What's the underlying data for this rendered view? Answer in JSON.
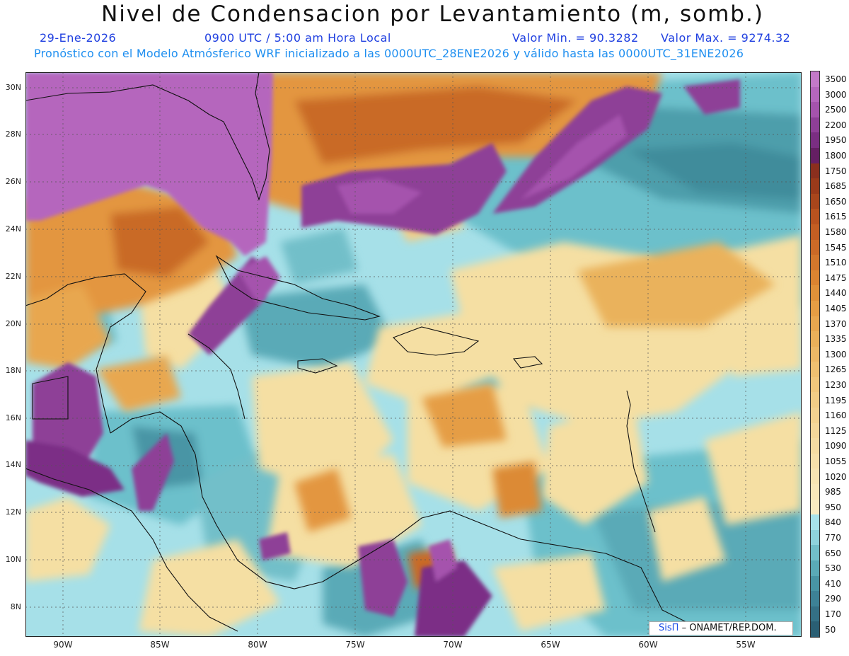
{
  "header": {
    "title": "Nivel de Condensacion por Levantamiento (m, somb.)",
    "date": "29-Ene-2026",
    "time": "0900 UTC / 5:00 am Hora Local",
    "valmin": "Valor Min. = 90.3282",
    "valmax": "Valor Max. = 9274.32",
    "model_line": "Pronóstico con el Modelo Atmósferico WRF inicializado a las 0000UTC_28ENE2026 y válido hasta las  0000UTC_31ENE2026"
  },
  "axes": {
    "lat_labels": [
      "30N",
      "28N",
      "26N",
      "24N",
      "22N",
      "20N",
      "18N",
      "16N",
      "14N",
      "12N",
      "10N",
      "8N"
    ],
    "lon_labels": [
      "90W",
      "85W",
      "80W",
      "75W",
      "70W",
      "65W",
      "60W",
      "55W"
    ]
  },
  "colorbar": {
    "labels": [
      "3500",
      "3000",
      "2500",
      "2200",
      "1950",
      "1800",
      "1750",
      "1685",
      "1650",
      "1615",
      "1580",
      "1545",
      "1510",
      "1475",
      "1440",
      "1405",
      "1370",
      "1335",
      "1300",
      "1265",
      "1230",
      "1195",
      "1160",
      "1125",
      "1090",
      "1055",
      "1020",
      "985",
      "950",
      "840",
      "770",
      "650",
      "530",
      "410",
      "290",
      "170",
      "50"
    ],
    "colors": [
      "#c379c9",
      "#b566bd",
      "#a553ad",
      "#8e3f97",
      "#7a2e82",
      "#651f63",
      "#8b2f1e",
      "#9a3a1a",
      "#a9461c",
      "#b8521f",
      "#c35e23",
      "#cc6a27",
      "#d4772c",
      "#db8431",
      "#e09139",
      "#e59d44",
      "#e8a74f",
      "#ebb05a",
      "#edb866",
      "#efc071",
      "#f1c77c",
      "#f2cd86",
      "#f3d290",
      "#f4d79a",
      "#f5dca3",
      "#f6e0ab",
      "#f7e4b3",
      "#f8e7ba",
      "#f8eac1",
      "#a8e2ea",
      "#8fd3dc",
      "#72bfc9",
      "#5aaab7",
      "#4895a5",
      "#3d8296",
      "#347085",
      "#2a5f74"
    ]
  },
  "logo": {
    "brand": "SisΠ",
    "text": "– ONAMET/REP.DOM."
  },
  "colors": {
    "purple": "#a855b5",
    "dark_purple": "#7b2f86",
    "brown": "#b0561c",
    "orange": "#e3963f",
    "yellow": "#f5dfa3",
    "light_cyan": "#a6e0e8",
    "cyan": "#6cc0cb",
    "teal": "#3f8c9b"
  }
}
